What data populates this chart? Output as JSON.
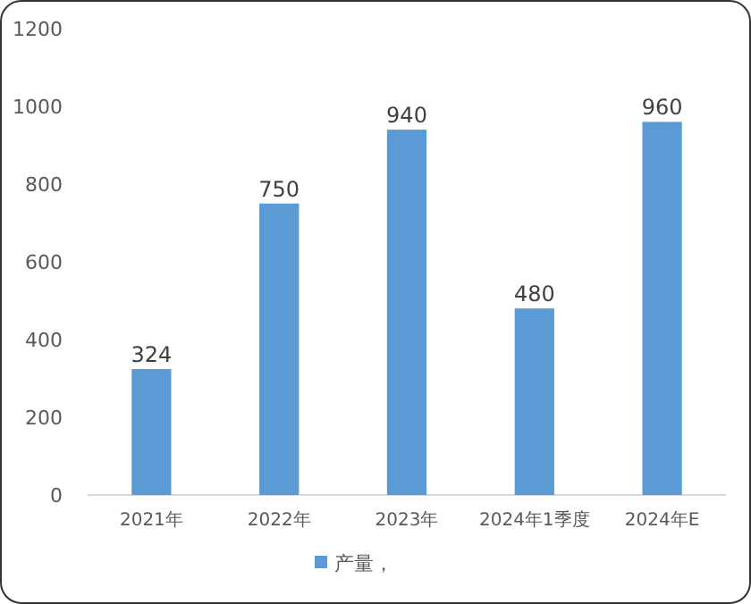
{
  "chart_data": {
    "type": "bar",
    "categories": [
      "2021年",
      "2022年",
      "2023年",
      "2024年1季度",
      "2024年E"
    ],
    "series": [
      {
        "name": "产量，",
        "color": "#5b9bd5",
        "values": [
          324,
          750,
          940,
          480,
          960
        ]
      }
    ],
    "ylim": [
      0,
      1200
    ],
    "yticks": [
      0,
      200,
      400,
      600,
      800,
      1000,
      1200
    ],
    "data_labels": true,
    "grid": false,
    "legend": "bottom"
  }
}
